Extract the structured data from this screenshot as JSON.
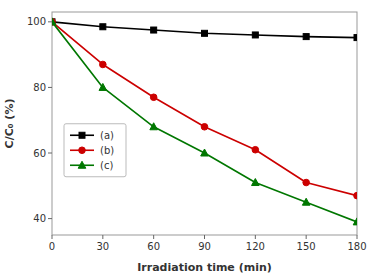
{
  "chart_data": {
    "type": "line",
    "x": [
      0,
      30,
      60,
      90,
      120,
      150,
      180
    ],
    "series": [
      {
        "name": "(a)",
        "color": "#000000",
        "marker": "square",
        "line_style": "solid",
        "values": [
          100,
          98.5,
          97.5,
          96.5,
          96,
          95.5,
          95.2
        ]
      },
      {
        "name": "(b)",
        "color": "#cc0000",
        "marker": "circle",
        "line_style": "solid",
        "values": [
          100,
          87,
          77,
          68,
          61,
          51,
          47
        ]
      },
      {
        "name": "(c)",
        "color": "#007700",
        "marker": "triangle",
        "line_style": "solid",
        "values": [
          100,
          80,
          68,
          60,
          51,
          45,
          39
        ]
      }
    ],
    "xlabel": "Irradiation time (min)",
    "ylabel": "C/C₀ (%)",
    "xlim": [
      0,
      180
    ],
    "ylim": [
      35,
      103
    ],
    "xticks": [
      0,
      30,
      60,
      90,
      120,
      150,
      180
    ],
    "yticks": [
      40,
      60,
      80,
      100
    ],
    "grid": false,
    "legend": "left"
  }
}
